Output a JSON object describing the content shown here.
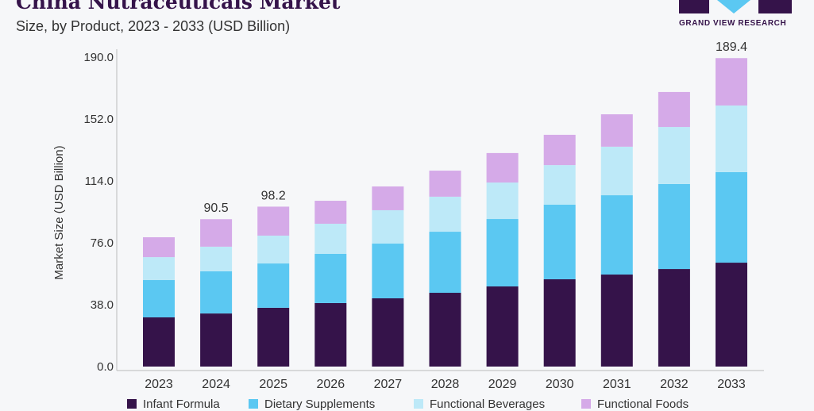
{
  "header": {
    "title": "China Nutraceuticals Market",
    "subtitle": "Size, by Product, 2023 - 2033 (USD Billion)",
    "logo_text": "GRAND VIEW RESEARCH"
  },
  "chart_data": {
    "type": "bar",
    "stacked": true,
    "title": "China Nutraceuticals Market",
    "subtitle": "Size, by Product, 2023 - 2033 (USD Billion)",
    "xlabel": "",
    "ylabel": "Market Size (USD Billion)",
    "ylim": [
      0,
      190
    ],
    "yticks": [
      "0.0",
      "38.0",
      "76.0",
      "114.0",
      "152.0",
      "190.0"
    ],
    "grid": false,
    "legend_position": "bottom",
    "categories": [
      "2023",
      "2024",
      "2025",
      "2026",
      "2027",
      "2028",
      "2029",
      "2030",
      "2031",
      "2032",
      "2033"
    ],
    "series": [
      {
        "name": "Infant Formula",
        "color": "#35134a",
        "values": [
          30.2,
          32.6,
          36.1,
          39.0,
          41.9,
          45.3,
          49.2,
          53.6,
          56.5,
          59.9,
          63.8
        ]
      },
      {
        "name": "Dietary Supplements",
        "color": "#5bc8f2",
        "values": [
          22.9,
          25.9,
          27.2,
          30.2,
          33.6,
          37.5,
          41.4,
          45.8,
          48.7,
          52.2,
          55.6
        ]
      },
      {
        "name": "Functional Beverages",
        "color": "#bde9f8",
        "values": [
          14.1,
          15.1,
          17.1,
          18.5,
          20.5,
          21.5,
          22.4,
          24.3,
          29.8,
          35.0,
          40.9
        ]
      },
      {
        "name": "Functional Foods",
        "color": "#d5aae8",
        "values": [
          12.2,
          16.9,
          17.8,
          14.1,
          14.6,
          16.0,
          18.1,
          18.6,
          19.9,
          21.5,
          29.1
        ]
      }
    ],
    "data_labels": {
      "2024": "90.5",
      "2025": "98.2",
      "2033": "189.4"
    }
  }
}
